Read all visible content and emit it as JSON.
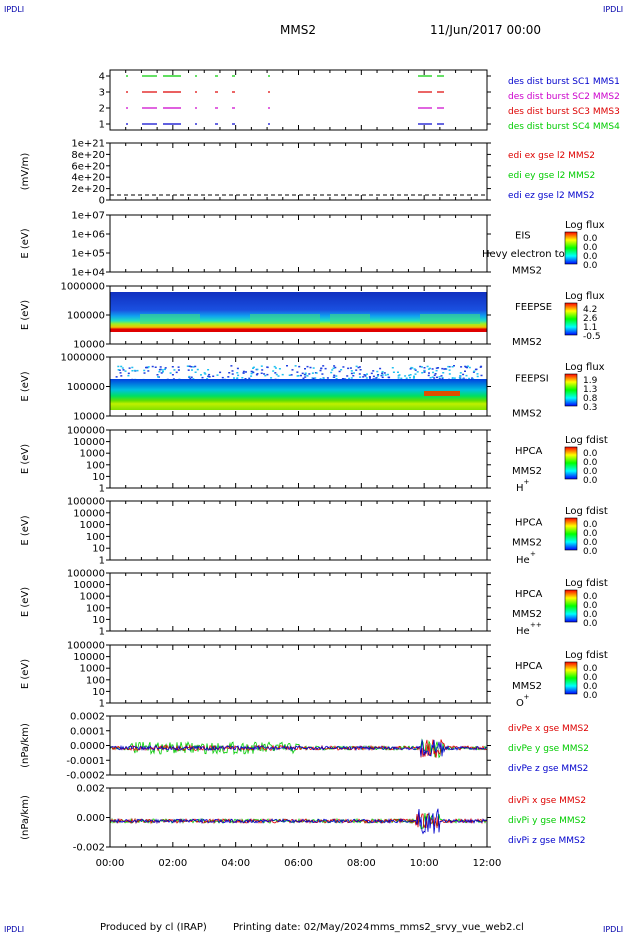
{
  "header": {
    "corner_left_top": "IPDLI",
    "corner_right_top": "IPDLI",
    "corner_left_bottom": "IPDLI",
    "corner_right_bottom": "IPDLI",
    "mission": "MMS2",
    "date": "11/Jun/2017 00:00"
  },
  "footer": {
    "produced": "Produced by cl (IRAP)",
    "printing": "Printing date: 02/May/2024",
    "file": "mms_mms2_srvy_vue_web2.cl"
  },
  "colors": {
    "black": "#000000",
    "red": "#dd0000",
    "green": "#00cc00",
    "blue": "#0000cc",
    "magenta": "#cc00cc"
  },
  "chart_data": {
    "type": "multi-panel",
    "x_range": [
      "00:00",
      "12:00"
    ],
    "x_ticks": [
      "00:00",
      "02:00",
      "04:00",
      "06:00",
      "08:00",
      "10:00",
      "12:00"
    ],
    "panels": [
      {
        "id": "p1",
        "type": "line",
        "ylabel": "",
        "ytick_labels": [
          "4",
          "3",
          "2",
          "1"
        ],
        "series": [
          {
            "name": "des dist burst SC1 MMS1",
            "color": "#0000cc"
          },
          {
            "name": "des dist burst SC2 MMS2",
            "color": "#cc00cc"
          },
          {
            "name": "des dist burst SC3 MMS3",
            "color": "#dd0000"
          },
          {
            "name": "des dist burst SC4 MMS4",
            "color": "#00cc00"
          }
        ]
      },
      {
        "id": "p2",
        "type": "line",
        "ylabel": "(mV/m)",
        "ytick_labels": [
          "1e+21",
          "8e+20",
          "6e+20",
          "4e+20",
          "2e+20",
          "0"
        ],
        "series": [
          {
            "name": "edi ex gse l2 MMS2",
            "color": "#dd0000"
          },
          {
            "name": "edi ey gse l2 MMS2",
            "color": "#00cc00"
          },
          {
            "name": "edi ez gse l2 MMS2",
            "color": "#0000cc"
          }
        ]
      },
      {
        "id": "p3",
        "type": "heatmap",
        "ylabel": "E (eV)",
        "ytick_labels": [
          "1e+07",
          "1e+06",
          "1e+05",
          "1e+04"
        ],
        "right_labels": [
          "EIS",
          "MMS2"
        ],
        "overlay_text": "Hevy electron to",
        "colorbar_title": "Log flux",
        "colorbar_ticks": [
          "0.0",
          "0.0",
          "0.0",
          "0.0"
        ]
      },
      {
        "id": "p4",
        "type": "heatmap",
        "ylabel": "E (eV)",
        "ytick_labels": [
          "1000000",
          "100000",
          "10000"
        ],
        "right_labels": [
          "FEEPSE",
          "MMS2"
        ],
        "colorbar_title": "Log flux",
        "colorbar_ticks": [
          "4.2",
          "2.6",
          "1.1",
          "-0.5"
        ]
      },
      {
        "id": "p5",
        "type": "heatmap",
        "ylabel": "E (eV)",
        "ytick_labels": [
          "1000000",
          "100000",
          "10000"
        ],
        "right_labels": [
          "FEEPSI",
          "MMS2"
        ],
        "colorbar_title": "Log flux",
        "colorbar_ticks": [
          "1.9",
          "1.3",
          "0.8",
          "0.3"
        ]
      },
      {
        "id": "p6",
        "type": "heatmap",
        "ylabel": "E (eV)",
        "ytick_labels": [
          "100000",
          "10000",
          "1000",
          "100",
          "10",
          "1"
        ],
        "right_labels": [
          "HPCA",
          "MMS2"
        ],
        "species": "H",
        "species_sup": "+",
        "colorbar_title": "Log fdist",
        "colorbar_ticks": [
          "0.0",
          "0.0",
          "0.0",
          "0.0"
        ]
      },
      {
        "id": "p7",
        "type": "heatmap",
        "ylabel": "E (eV)",
        "ytick_labels": [
          "100000",
          "10000",
          "1000",
          "100",
          "10",
          "1"
        ],
        "right_labels": [
          "HPCA",
          "MMS2"
        ],
        "species": "He",
        "species_sup": "+",
        "colorbar_title": "Log fdist",
        "colorbar_ticks": [
          "0.0",
          "0.0",
          "0.0",
          "0.0"
        ]
      },
      {
        "id": "p8",
        "type": "heatmap",
        "ylabel": "E (eV)",
        "ytick_labels": [
          "100000",
          "10000",
          "1000",
          "100",
          "10",
          "1"
        ],
        "right_labels": [
          "HPCA",
          "MMS2"
        ],
        "species": "He",
        "species_sup": "++",
        "colorbar_title": "Log fdist",
        "colorbar_ticks": [
          "0.0",
          "0.0",
          "0.0",
          "0.0"
        ]
      },
      {
        "id": "p9",
        "type": "heatmap",
        "ylabel": "E (eV)",
        "ytick_labels": [
          "100000",
          "10000",
          "1000",
          "100",
          "10",
          "1"
        ],
        "right_labels": [
          "HPCA",
          "MMS2"
        ],
        "species": "O",
        "species_sup": "+",
        "colorbar_title": "Log fdist",
        "colorbar_ticks": [
          "0.0",
          "0.0",
          "0.0",
          "0.0"
        ]
      },
      {
        "id": "p10",
        "type": "line",
        "ylabel": "(nPa/km)",
        "ytick_labels": [
          "0.0002",
          "0.0001",
          "0.0000",
          "-0.0001",
          "-0.0002"
        ],
        "series": [
          {
            "name": "divPe x gse MMS2",
            "color": "#dd0000"
          },
          {
            "name": "divPe y gse MMS2",
            "color": "#00cc00"
          },
          {
            "name": "divPe z gse MMS2",
            "color": "#0000cc"
          }
        ]
      },
      {
        "id": "p11",
        "type": "line",
        "ylabel": "(nPa/km)",
        "ytick_labels": [
          "0.002",
          "0.000",
          "-0.002"
        ],
        "series": [
          {
            "name": "divPi x gse MMS2",
            "color": "#dd0000"
          },
          {
            "name": "divPi y gse MMS2",
            "color": "#00cc00"
          },
          {
            "name": "divPi z gse MMS2",
            "color": "#0000cc"
          }
        ]
      }
    ]
  }
}
